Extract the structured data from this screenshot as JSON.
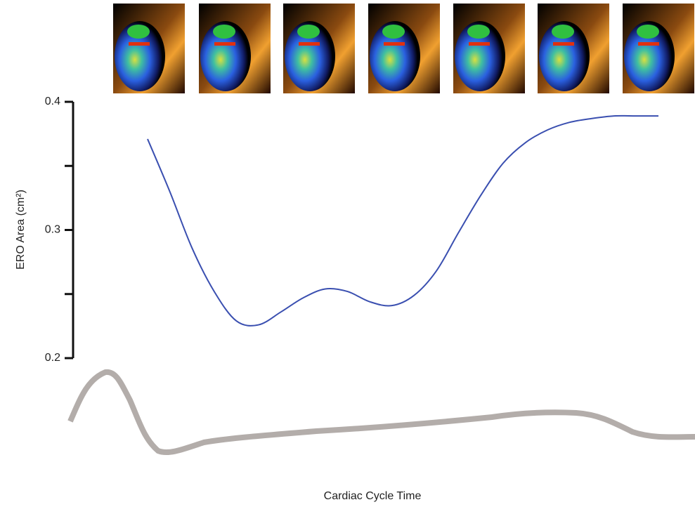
{
  "chart_data": {
    "type": "line",
    "y_label": "ERO Area (cm²)",
    "x_label": "Cardiac Cycle Time",
    "ylim": [
      0.2,
      0.4
    ],
    "yticks": [
      0.2,
      0.3,
      0.4
    ],
    "yminorticks": [
      0.25,
      0.35
    ],
    "series": [
      {
        "color": "#3a4fb0",
        "values": [
          0.371,
          0.33,
          0.286,
          0.252,
          0.229,
          0.226,
          0.236,
          0.247,
          0.254,
          0.252,
          0.244,
          0.241,
          0.249,
          0.268,
          0.298,
          0.327,
          0.352,
          0.368,
          0.378,
          0.384,
          0.387,
          0.389,
          0.389,
          0.389
        ]
      }
    ]
  }
}
